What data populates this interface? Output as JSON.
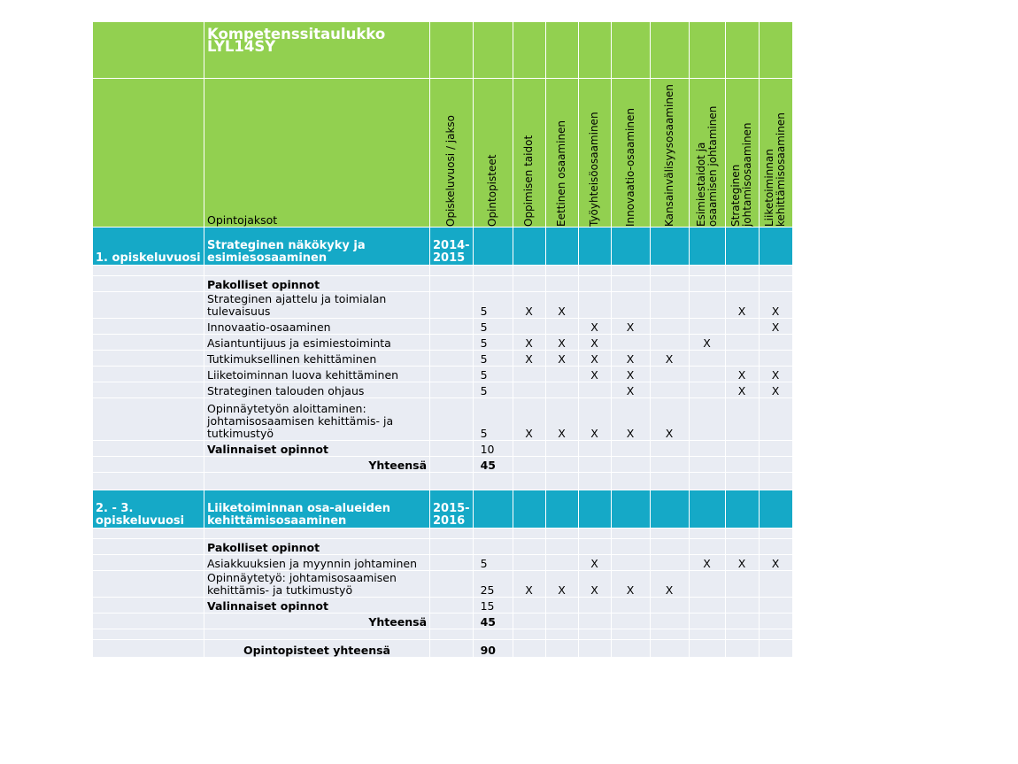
{
  "title": "Kompetenssitaulukko LYL14SY",
  "headers": {
    "courses": "Opintojaksot",
    "year": "Opiskeluvuosi / jakso",
    "credits": "Opintopisteet",
    "competences": [
      "Oppimisen taidot",
      "Eettinen osaaminen",
      "Työyhteisöosaaminen",
      "Innovaatio-osaaminen",
      "Kansainvälisyysosaaminen",
      "Esimiestaidot ja osaamisen johtaminen",
      "Strateginen johtamisosaaminen",
      "Liiketoiminnan kehittämisosaaminen"
    ]
  },
  "sections": [
    {
      "year_label": "1. opiskeluvuosi",
      "name": "Strateginen näkökyky ja esimiesosaaminen",
      "period": "2014-2015",
      "mandatory_label": "Pakolliset opinnot",
      "courses": [
        {
          "name": "Strateginen ajattelu ja toimialan tulevaisuus",
          "credits": "5",
          "marks": [
            "X",
            "X",
            "",
            "",
            "",
            "",
            "X",
            "X"
          ]
        },
        {
          "name": "Innovaatio-osaaminen",
          "credits": "5",
          "marks": [
            "",
            "",
            "X",
            "X",
            "",
            "",
            "",
            "X"
          ]
        },
        {
          "name": "Asiantuntijuus ja esimiestoiminta",
          "credits": "5",
          "marks": [
            "X",
            "X",
            "X",
            "",
            "",
            "X",
            "",
            ""
          ]
        },
        {
          "name": "Tutkimuksellinen kehittäminen",
          "credits": "5",
          "marks": [
            "X",
            "X",
            "X",
            "X",
            "X",
            "",
            "",
            ""
          ]
        },
        {
          "name": "Liiketoiminnan luova kehittäminen",
          "credits": "5",
          "marks": [
            "",
            "",
            "X",
            "X",
            "",
            "",
            "X",
            "X"
          ]
        },
        {
          "name": "Strateginen talouden ohjaus",
          "credits": "5",
          "marks": [
            "",
            "",
            "",
            "X",
            "",
            "",
            "X",
            "X"
          ]
        },
        {
          "name": "Opinnäytetyön aloittaminen: johtamisosaamisen kehittämis- ja tutkimustyö",
          "credits": "5",
          "marks": [
            "X",
            "X",
            "X",
            "X",
            "X",
            "",
            "",
            ""
          ]
        }
      ],
      "elective_label": "Valinnaiset opinnot",
      "elective_credits": "10",
      "total_label": "Yhteensä",
      "total_credits": "45"
    },
    {
      "year_label": "2. - 3. opiskeluvuosi",
      "name": "Liiketoiminnan osa-alueiden kehittämisosaaminen",
      "period": "2015-2016",
      "mandatory_label": "Pakolliset opinnot",
      "courses": [
        {
          "name": "Asiakkuuksien ja myynnin johtaminen",
          "credits": "5",
          "marks": [
            "",
            "",
            "X",
            "",
            "",
            "X",
            "X",
            "X"
          ]
        },
        {
          "name": "Opinnäytetyö: johtamisosaamisen kehittämis- ja tutkimustyö",
          "credits": "25",
          "marks": [
            "X",
            "X",
            "X",
            "X",
            "X",
            "",
            "",
            ""
          ]
        }
      ],
      "elective_label": "Valinnaiset opinnot",
      "elective_credits": "15",
      "total_label": "Yhteensä",
      "total_credits": "45"
    }
  ],
  "grand_total_label": "Opintopisteet yhteensä",
  "grand_total_credits": "90"
}
